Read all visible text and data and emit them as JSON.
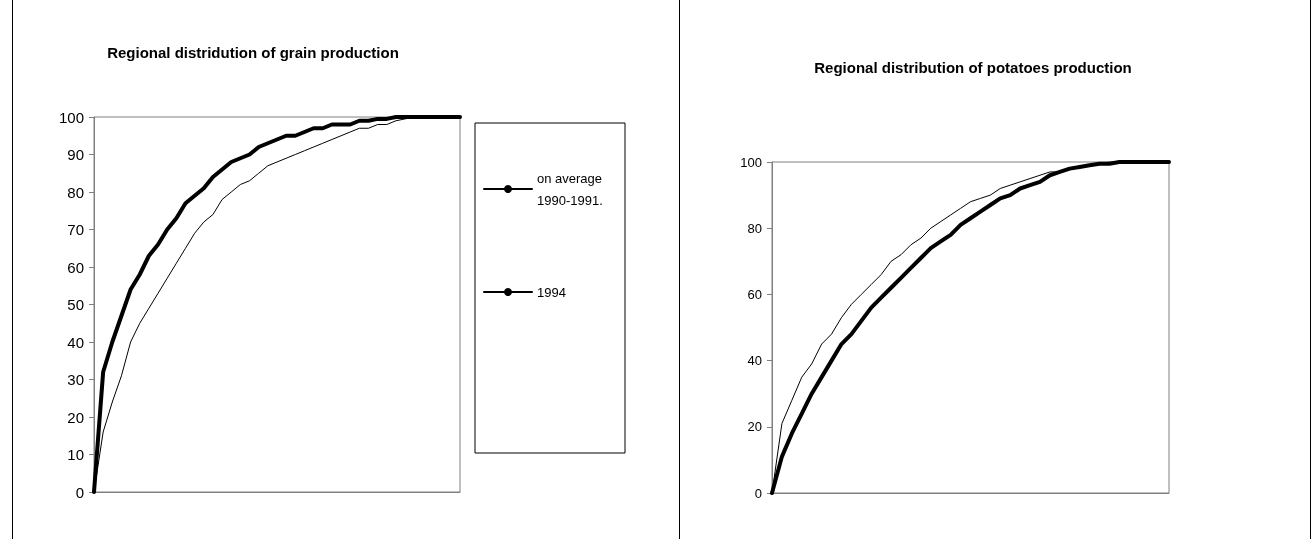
{
  "chart_data": [
    {
      "type": "line",
      "title": "Regional distridution of grain production",
      "categories": [
        null,
        null,
        null,
        null,
        null,
        null,
        null,
        null,
        null,
        null,
        null,
        null,
        null,
        null,
        null,
        null,
        null,
        null,
        null,
        null,
        null,
        null,
        null,
        null,
        null,
        null,
        null,
        null,
        null,
        null,
        null,
        null,
        null,
        null,
        null,
        null,
        null,
        null,
        null,
        null,
        null
      ],
      "ylim": [
        0,
        100
      ],
      "yticks": [
        0,
        10,
        20,
        30,
        40,
        50,
        60,
        70,
        80,
        90,
        100
      ],
      "grid": false,
      "legend": "right",
      "marker": "none",
      "line_style": "solid",
      "series": [
        {
          "name": "on average 1990-1991.",
          "color": "#000000",
          "values": [
            0,
            16,
            24,
            31,
            40,
            45,
            49,
            53,
            57,
            61,
            65,
            69,
            72,
            74,
            78,
            80,
            82,
            83,
            85,
            87,
            88,
            89,
            90,
            91,
            92,
            93,
            94,
            95,
            96,
            97,
            97,
            98,
            98,
            99,
            99.5,
            100,
            100,
            100,
            100,
            100,
            100
          ]
        },
        {
          "name": "1994",
          "color": "#000000",
          "values": [
            0,
            32,
            40,
            47,
            54,
            58,
            63,
            66,
            70,
            73,
            77,
            79,
            81,
            84,
            86,
            88,
            89,
            90,
            92,
            93,
            94,
            95,
            95,
            96,
            97,
            97,
            98,
            98,
            98,
            99,
            99,
            99.5,
            99.5,
            100,
            100,
            100,
            100,
            100,
            100,
            100,
            100
          ]
        }
      ]
    },
    {
      "type": "line",
      "title": "Regional distribution of potatoes production",
      "categories": [
        null,
        null,
        null,
        null,
        null,
        null,
        null,
        null,
        null,
        null,
        null,
        null,
        null,
        null,
        null,
        null,
        null,
        null,
        null,
        null,
        null,
        null,
        null,
        null,
        null,
        null,
        null,
        null,
        null,
        null,
        null,
        null,
        null,
        null,
        null,
        null,
        null,
        null,
        null,
        null,
        null
      ],
      "ylim": [
        0,
        100
      ],
      "yticks": [
        0,
        20,
        40,
        60,
        80,
        100
      ],
      "grid": false,
      "marker": "none",
      "line_style": "solid",
      "series": [
        {
          "color": "#000000",
          "values": [
            0,
            21,
            28,
            35,
            39,
            45,
            48,
            53,
            57,
            60,
            63,
            66,
            70,
            72,
            75,
            77,
            80,
            82,
            84,
            86,
            88,
            89,
            90,
            92,
            93,
            94,
            95,
            96,
            97,
            97,
            98,
            98.5,
            99,
            99.5,
            100,
            100,
            100,
            100,
            100,
            100,
            100
          ]
        },
        {
          "color": "#000000",
          "values": [
            0,
            11,
            18,
            24,
            30,
            35,
            40,
            45,
            48,
            52,
            56,
            59,
            62,
            65,
            68,
            71,
            74,
            76,
            78,
            81,
            83,
            85,
            87,
            89,
            90,
            92,
            93,
            94,
            96,
            97,
            98,
            98.5,
            99,
            99.5,
            99.5,
            100,
            100,
            100,
            100,
            100,
            100
          ]
        }
      ]
    }
  ]
}
